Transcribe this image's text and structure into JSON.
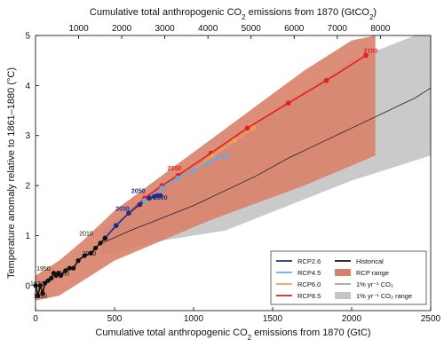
{
  "colors": {
    "rcp26": "#1f2d8a",
    "rcp45": "#6fa6dc",
    "rcp60": "#f0a150",
    "rcp85": "#e3201b",
    "historical": "#111111",
    "rcp_range": "#d9826a",
    "onepct_line": "#222222",
    "onepct_range": "#c4c4c4"
  },
  "chart_data": {
    "type": "line",
    "xlabel_parts": [
      "Cumulative total anthropogenic CO",
      "2",
      " emissions from 1870 (GtC)"
    ],
    "ylabel_parts": [
      "Temperature anomaly relative to 1861–1880 (°C)"
    ],
    "top_xlabel_parts": [
      "Cumulative total anthropogenic CO",
      "2",
      " emissions from 1870 (GtCO",
      "2",
      ")"
    ],
    "xlim": [
      0,
      2500
    ],
    "ylim": [
      -0.5,
      5
    ],
    "x_ticks": [
      0,
      500,
      1000,
      1500,
      2000,
      2500
    ],
    "y_ticks": [
      0,
      1,
      2,
      3,
      4,
      5
    ],
    "top_x_ticks_gtco2": [
      1000,
      2000,
      3000,
      4000,
      5000,
      6000,
      7000,
      8000
    ],
    "historical": {
      "name": "Historical",
      "x": [
        0,
        15,
        30,
        45,
        60,
        80,
        100,
        115,
        130,
        145,
        160,
        190,
        215,
        240,
        270,
        310,
        350,
        380,
        410,
        440
      ],
      "y": [
        0.0,
        -0.2,
        0.0,
        -0.15,
        0.05,
        0.1,
        0.15,
        0.25,
        0.2,
        0.25,
        0.2,
        0.3,
        0.35,
        0.35,
        0.5,
        0.6,
        0.65,
        0.75,
        0.85,
        0.95
      ],
      "year_labels": [
        {
          "text": "1870",
          "x": 10,
          "y": 0.0
        },
        {
          "text": "1890",
          "x": 30,
          "y": -0.25
        },
        {
          "text": "1950",
          "x": 50,
          "y": 0.3
        },
        {
          "text": "1980",
          "x": 170,
          "y": 0.2
        },
        {
          "text": "2000",
          "x": 340,
          "y": 0.6
        },
        {
          "text": "2010",
          "x": 320,
          "y": 1.0
        }
      ]
    },
    "series": [
      {
        "name": "RCP2.6",
        "color_key": "rcp26",
        "x": [
          440,
          510,
          590,
          660,
          720,
          750,
          770,
          790
        ],
        "y": [
          0.95,
          1.2,
          1.45,
          1.62,
          1.75,
          1.78,
          1.8,
          1.8
        ],
        "labels": [
          {
            "text": "2030",
            "x": 550,
            "y": 1.5
          },
          {
            "text": "2050",
            "x": 650,
            "y": 1.85
          },
          {
            "text": "2100",
            "x": 790,
            "y": 1.72
          }
        ]
      },
      {
        "name": "RCP4.5",
        "color_key": "rcp45",
        "x": [
          440,
          510,
          590,
          690,
          800,
          900,
          1000,
          1090,
          1150,
          1210
        ],
        "y": [
          0.95,
          1.2,
          1.45,
          1.7,
          1.95,
          2.15,
          2.3,
          2.45,
          2.55,
          2.6
        ],
        "labels": []
      },
      {
        "name": "RCP6.0",
        "color_key": "rcp60",
        "x": [
          440,
          510,
          590,
          690,
          800,
          900,
          1000,
          1120,
          1260,
          1380
        ],
        "y": [
          0.95,
          1.2,
          1.45,
          1.7,
          1.95,
          2.15,
          2.3,
          2.6,
          2.9,
          3.15
        ],
        "labels": []
      },
      {
        "name": "RCP8.5",
        "color_key": "rcp85",
        "x": [
          440,
          510,
          590,
          690,
          800,
          900,
          1110,
          1340,
          1600,
          1840,
          2090
        ],
        "y": [
          0.95,
          1.2,
          1.45,
          1.75,
          2.0,
          2.2,
          2.65,
          3.15,
          3.65,
          4.1,
          4.6
        ],
        "labels": [
          {
            "text": "2050",
            "x": 880,
            "y": 2.3
          },
          {
            "text": "2100",
            "x": 2120,
            "y": 4.65
          }
        ]
      }
    ],
    "onepct_line": {
      "name": "1% yr⁻¹ CO₂",
      "x": [
        420,
        600,
        800,
        1000,
        1200,
        1400,
        1600,
        1800,
        2000,
        2200,
        2400,
        2500
      ],
      "y": [
        0.85,
        1.1,
        1.35,
        1.6,
        1.9,
        2.2,
        2.55,
        2.85,
        3.15,
        3.45,
        3.75,
        3.95
      ]
    },
    "onepct_range": {
      "name": "1% yr⁻¹ CO₂ range",
      "x": [
        420,
        800,
        1200,
        1600,
        2000,
        2400,
        2500
      ],
      "upper": [
        1.1,
        2.0,
        2.8,
        3.7,
        4.5,
        5.0,
        5.0
      ],
      "lower": [
        0.6,
        0.9,
        1.1,
        1.6,
        2.1,
        2.5,
        2.6
      ]
    },
    "rcp_range": {
      "name": "RCP range",
      "x": [
        0,
        150,
        300,
        500,
        800,
        1100,
        1400,
        1700,
        2000,
        2150
      ],
      "upper": [
        0.2,
        0.5,
        0.9,
        1.5,
        2.2,
        2.9,
        3.6,
        4.3,
        4.9,
        5.0
      ],
      "lower": [
        -0.3,
        -0.2,
        0.1,
        0.5,
        0.9,
        1.3,
        1.65,
        2.0,
        2.4,
        2.6
      ]
    },
    "legend": {
      "position": "bottom-right",
      "col1": [
        {
          "label": "RCP2.6",
          "kind": "line",
          "color_key": "rcp26"
        },
        {
          "label": "RCP4.5",
          "kind": "line",
          "color_key": "rcp45"
        },
        {
          "label": "RCP6.0",
          "kind": "line",
          "color_key": "rcp60"
        },
        {
          "label": "RCP8.5",
          "kind": "line",
          "color_key": "rcp85"
        }
      ],
      "col2": [
        {
          "label": "Historical",
          "kind": "line",
          "color_key": "historical"
        },
        {
          "label": "RCP range",
          "kind": "box",
          "color_key": "rcp_range"
        },
        {
          "label": "1% yr⁻¹ CO₂",
          "kind": "thinline",
          "color_key": "onepct_line"
        },
        {
          "label": "1% yr⁻¹ CO₂ range",
          "kind": "box",
          "color_key": "onepct_range"
        }
      ]
    }
  }
}
